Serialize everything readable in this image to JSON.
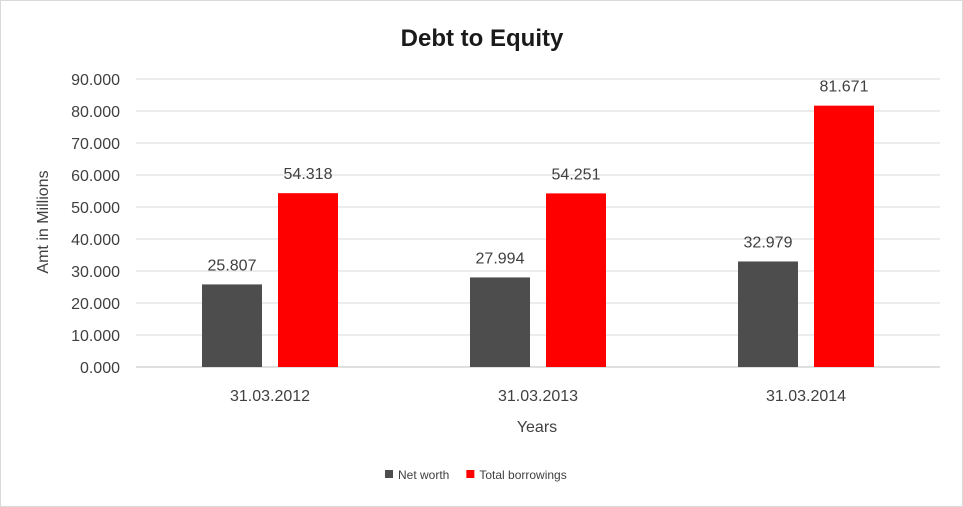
{
  "chart_data": {
    "type": "bar",
    "title": "Debt to Equity",
    "xlabel": "Years",
    "ylabel": "Amt in Millions",
    "categories": [
      "31.03.2012",
      "31.03.2013",
      "31.03.2014"
    ],
    "series": [
      {
        "name": "Net worth",
        "color": "#4d4d4d",
        "values": [
          25.807,
          27.994,
          32.979
        ],
        "labels": [
          "25.807",
          "27.994",
          "32.979"
        ]
      },
      {
        "name": "Total borrowings",
        "color": "#ff0000",
        "values": [
          54.318,
          54.251,
          81.671
        ],
        "labels": [
          "54.318",
          "54.251",
          "81.671"
        ]
      }
    ],
    "ylim": [
      0,
      90
    ],
    "yticks": [
      "0.000",
      "10.000",
      "20.000",
      "30.000",
      "40.000",
      "50.000",
      "60.000",
      "70.000",
      "80.000",
      "90.000"
    ],
    "grid": true,
    "legend_position": "bottom"
  }
}
